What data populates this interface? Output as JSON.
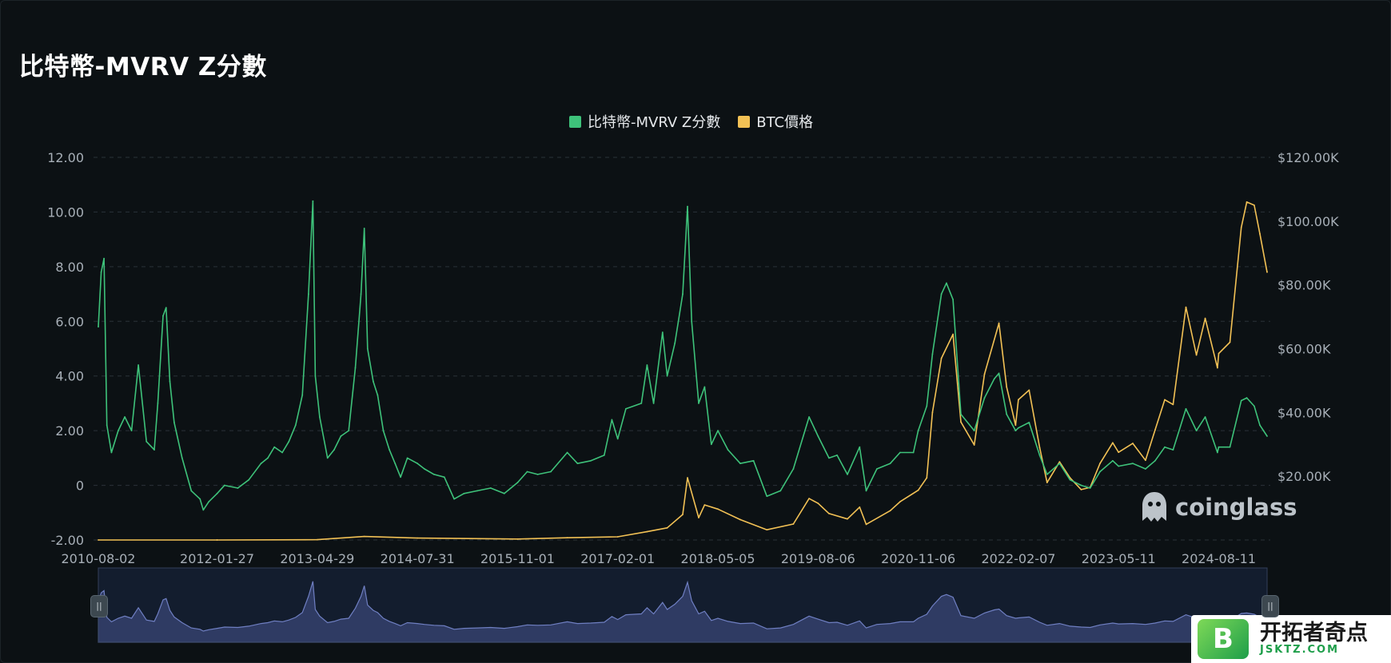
{
  "title": "比特幣-MVRV Z分數",
  "legend": [
    {
      "label": "比特幣-MVRV Z分數",
      "color": "#3ec27a"
    },
    {
      "label": "BTC價格",
      "color": "#f2c155"
    }
  ],
  "watermark": {
    "text": "coinglass",
    "icon": "coinglass-ghost-icon"
  },
  "badge": {
    "logo_letter": "B",
    "name": "开拓者奇点",
    "domain": "JSKTZ.COM"
  },
  "navigator": {
    "left_handle": "||",
    "right_handle": "||"
  },
  "colors": {
    "background": "#0c1114",
    "zscore": "#3ec27a",
    "price": "#f2c155",
    "navigator_fill": "#2f3b63",
    "navigator_line": "#6f7fc2",
    "grid": "#2a3238"
  },
  "chart_data": {
    "type": "line",
    "title": "比特幣-MVRV Z分數",
    "legend_position": "top-center",
    "grid": true,
    "x_axis": {
      "type": "date",
      "range": [
        "2010-08-02",
        "2025-03-20"
      ],
      "tick_labels": [
        "2010-08-02",
        "2012-01-27",
        "2013-04-29",
        "2014-07-31",
        "2015-11-01",
        "2017-02-01",
        "2018-05-05",
        "2019-08-06",
        "2020-11-06",
        "2022-02-07",
        "2023-05-11",
        "2024-08-11"
      ]
    },
    "y_left": {
      "range": [
        -2,
        12
      ],
      "tick_labels": [
        "12.00",
        "10.00",
        "8.00",
        "6.00",
        "4.00",
        "2.00",
        "0",
        "-2.00"
      ]
    },
    "y_right": {
      "range": [
        0,
        120000
      ],
      "tick_labels": [
        "$120.00K",
        "$100.00K",
        "$80.00K",
        "$60.00K",
        "$40.00K",
        "$20.00K"
      ]
    },
    "series": [
      {
        "name": "比特幣-MVRV Z分數",
        "axis": "left",
        "points": [
          [
            "2010-08-02",
            5.8
          ],
          [
            "2010-08-15",
            7.8
          ],
          [
            "2010-08-28",
            8.3
          ],
          [
            "2010-09-10",
            2.2
          ],
          [
            "2010-10-01",
            1.2
          ],
          [
            "2010-11-01",
            2.0
          ],
          [
            "2010-12-01",
            2.5
          ],
          [
            "2011-01-01",
            2.0
          ],
          [
            "2011-02-01",
            4.4
          ],
          [
            "2011-03-10",
            1.6
          ],
          [
            "2011-04-15",
            1.3
          ],
          [
            "2011-05-01",
            3.0
          ],
          [
            "2011-05-25",
            6.2
          ],
          [
            "2011-06-08",
            6.5
          ],
          [
            "2011-06-25",
            3.8
          ],
          [
            "2011-07-15",
            2.3
          ],
          [
            "2011-08-20",
            1.0
          ],
          [
            "2011-10-01",
            -0.2
          ],
          [
            "2011-11-10",
            -0.5
          ],
          [
            "2011-11-25",
            -0.9
          ],
          [
            "2011-12-20",
            -0.6
          ],
          [
            "2012-01-27",
            -0.3
          ],
          [
            "2012-03-01",
            0.0
          ],
          [
            "2012-05-01",
            -0.1
          ],
          [
            "2012-06-20",
            0.2
          ],
          [
            "2012-08-15",
            0.8
          ],
          [
            "2012-09-15",
            1.0
          ],
          [
            "2012-10-15",
            1.4
          ],
          [
            "2012-11-20",
            1.2
          ],
          [
            "2012-12-20",
            1.6
          ],
          [
            "2013-01-20",
            2.2
          ],
          [
            "2013-02-20",
            3.3
          ],
          [
            "2013-03-20",
            7.0
          ],
          [
            "2013-04-09",
            10.4
          ],
          [
            "2013-04-20",
            4.0
          ],
          [
            "2013-05-10",
            2.5
          ],
          [
            "2013-06-15",
            1.0
          ],
          [
            "2013-07-15",
            1.3
          ],
          [
            "2013-08-15",
            1.8
          ],
          [
            "2013-09-20",
            2.0
          ],
          [
            "2013-10-20",
            4.3
          ],
          [
            "2013-11-15",
            7.0
          ],
          [
            "2013-11-30",
            9.4
          ],
          [
            "2013-12-15",
            5.0
          ],
          [
            "2014-01-10",
            3.8
          ],
          [
            "2014-01-30",
            3.3
          ],
          [
            "2014-02-25",
            2.0
          ],
          [
            "2014-03-25",
            1.3
          ],
          [
            "2014-04-20",
            0.8
          ],
          [
            "2014-05-15",
            0.3
          ],
          [
            "2014-06-15",
            1.0
          ],
          [
            "2014-07-31",
            0.8
          ],
          [
            "2014-09-01",
            0.6
          ],
          [
            "2014-10-15",
            0.4
          ],
          [
            "2014-12-01",
            0.3
          ],
          [
            "2015-01-15",
            -0.5
          ],
          [
            "2015-03-01",
            -0.3
          ],
          [
            "2015-05-01",
            -0.2
          ],
          [
            "2015-07-01",
            -0.1
          ],
          [
            "2015-09-01",
            -0.3
          ],
          [
            "2015-11-01",
            0.1
          ],
          [
            "2015-12-15",
            0.5
          ],
          [
            "2016-02-01",
            0.4
          ],
          [
            "2016-04-01",
            0.5
          ],
          [
            "2016-06-15",
            1.2
          ],
          [
            "2016-08-01",
            0.8
          ],
          [
            "2016-10-01",
            0.9
          ],
          [
            "2016-12-01",
            1.1
          ],
          [
            "2017-01-05",
            2.4
          ],
          [
            "2017-02-01",
            1.7
          ],
          [
            "2017-03-10",
            2.8
          ],
          [
            "2017-05-20",
            3.0
          ],
          [
            "2017-06-15",
            4.4
          ],
          [
            "2017-07-15",
            3.0
          ],
          [
            "2017-08-25",
            5.6
          ],
          [
            "2017-09-15",
            4.0
          ],
          [
            "2017-10-20",
            5.2
          ],
          [
            "2017-11-25",
            7.0
          ],
          [
            "2017-12-17",
            10.2
          ],
          [
            "2018-01-05",
            6.0
          ],
          [
            "2018-02-06",
            3.0
          ],
          [
            "2018-03-05",
            3.6
          ],
          [
            "2018-04-05",
            1.5
          ],
          [
            "2018-05-05",
            2.0
          ],
          [
            "2018-06-20",
            1.3
          ],
          [
            "2018-08-15",
            0.8
          ],
          [
            "2018-10-15",
            0.9
          ],
          [
            "2018-12-15",
            -0.4
          ],
          [
            "2019-02-15",
            -0.2
          ],
          [
            "2019-04-15",
            0.6
          ],
          [
            "2019-06-26",
            2.5
          ],
          [
            "2019-08-06",
            1.8
          ],
          [
            "2019-09-25",
            1.0
          ],
          [
            "2019-11-01",
            1.1
          ],
          [
            "2019-12-18",
            0.4
          ],
          [
            "2020-02-12",
            1.4
          ],
          [
            "2020-03-13",
            -0.2
          ],
          [
            "2020-05-01",
            0.6
          ],
          [
            "2020-07-01",
            0.8
          ],
          [
            "2020-08-15",
            1.2
          ],
          [
            "2020-10-15",
            1.2
          ],
          [
            "2020-11-06",
            2.0
          ],
          [
            "2020-12-15",
            2.9
          ],
          [
            "2021-01-10",
            4.8
          ],
          [
            "2021-02-20",
            7.0
          ],
          [
            "2021-03-15",
            7.4
          ],
          [
            "2021-04-14",
            6.8
          ],
          [
            "2021-05-20",
            2.6
          ],
          [
            "2021-07-20",
            2.0
          ],
          [
            "2021-09-05",
            3.2
          ],
          [
            "2021-10-20",
            3.9
          ],
          [
            "2021-11-10",
            4.1
          ],
          [
            "2021-12-15",
            2.6
          ],
          [
            "2022-01-25",
            2.0
          ],
          [
            "2022-02-07",
            2.1
          ],
          [
            "2022-03-28",
            2.3
          ],
          [
            "2022-05-15",
            1.1
          ],
          [
            "2022-06-18",
            0.4
          ],
          [
            "2022-08-14",
            0.8
          ],
          [
            "2022-10-01",
            0.2
          ],
          [
            "2022-11-21",
            0.0
          ],
          [
            "2023-01-01",
            -0.1
          ],
          [
            "2023-02-15",
            0.5
          ],
          [
            "2023-04-14",
            0.9
          ],
          [
            "2023-05-11",
            0.7
          ],
          [
            "2023-07-15",
            0.8
          ],
          [
            "2023-09-11",
            0.6
          ],
          [
            "2023-10-25",
            0.9
          ],
          [
            "2023-12-08",
            1.4
          ],
          [
            "2024-01-15",
            1.3
          ],
          [
            "2024-03-14",
            2.8
          ],
          [
            "2024-05-01",
            2.0
          ],
          [
            "2024-06-10",
            2.5
          ],
          [
            "2024-08-05",
            1.2
          ],
          [
            "2024-08-11",
            1.4
          ],
          [
            "2024-10-01",
            1.4
          ],
          [
            "2024-11-22",
            3.1
          ],
          [
            "2024-12-17",
            3.2
          ],
          [
            "2025-01-20",
            2.9
          ],
          [
            "2025-02-15",
            2.2
          ],
          [
            "2025-03-20",
            1.8
          ]
        ]
      },
      {
        "name": "BTC價格",
        "axis": "right",
        "points": [
          [
            "2010-08-02",
            0
          ],
          [
            "2012-01-27",
            10
          ],
          [
            "2013-04-29",
            100
          ],
          [
            "2013-11-30",
            1100
          ],
          [
            "2014-07-31",
            600
          ],
          [
            "2015-11-01",
            300
          ],
          [
            "2016-06-15",
            700
          ],
          [
            "2017-02-01",
            1000
          ],
          [
            "2017-06-15",
            2600
          ],
          [
            "2017-09-15",
            3800
          ],
          [
            "2017-11-25",
            8000
          ],
          [
            "2017-12-17",
            19500
          ],
          [
            "2018-02-06",
            7000
          ],
          [
            "2018-03-05",
            11000
          ],
          [
            "2018-05-05",
            9700
          ],
          [
            "2018-08-15",
            6400
          ],
          [
            "2018-12-15",
            3200
          ],
          [
            "2019-04-15",
            5000
          ],
          [
            "2019-06-26",
            13000
          ],
          [
            "2019-08-06",
            11500
          ],
          [
            "2019-09-25",
            8300
          ],
          [
            "2019-12-18",
            6600
          ],
          [
            "2020-02-12",
            10300
          ],
          [
            "2020-03-13",
            4900
          ],
          [
            "2020-07-01",
            9200
          ],
          [
            "2020-08-15",
            12000
          ],
          [
            "2020-11-06",
            15600
          ],
          [
            "2020-12-15",
            19500
          ],
          [
            "2021-01-10",
            40000
          ],
          [
            "2021-02-20",
            57000
          ],
          [
            "2021-04-14",
            64500
          ],
          [
            "2021-05-20",
            37000
          ],
          [
            "2021-07-20",
            29800
          ],
          [
            "2021-09-05",
            52000
          ],
          [
            "2021-11-10",
            68000
          ],
          [
            "2021-12-15",
            48000
          ],
          [
            "2022-01-25",
            36000
          ],
          [
            "2022-02-07",
            44000
          ],
          [
            "2022-03-28",
            47000
          ],
          [
            "2022-05-15",
            29000
          ],
          [
            "2022-06-18",
            18000
          ],
          [
            "2022-08-14",
            24500
          ],
          [
            "2022-10-01",
            19500
          ],
          [
            "2022-11-21",
            15800
          ],
          [
            "2023-01-01",
            16500
          ],
          [
            "2023-02-15",
            24000
          ],
          [
            "2023-04-14",
            30500
          ],
          [
            "2023-05-11",
            27500
          ],
          [
            "2023-07-15",
            30300
          ],
          [
            "2023-09-11",
            25000
          ],
          [
            "2023-10-25",
            34500
          ],
          [
            "2023-12-08",
            44000
          ],
          [
            "2024-01-15",
            42500
          ],
          [
            "2024-03-14",
            73000
          ],
          [
            "2024-05-01",
            58000
          ],
          [
            "2024-06-10",
            69500
          ],
          [
            "2024-08-05",
            54000
          ],
          [
            "2024-08-11",
            58500
          ],
          [
            "2024-10-01",
            62000
          ],
          [
            "2024-11-22",
            98000
          ],
          [
            "2024-12-17",
            106000
          ],
          [
            "2025-01-20",
            105000
          ],
          [
            "2025-02-15",
            96000
          ],
          [
            "2025-03-20",
            84000
          ]
        ]
      }
    ]
  }
}
